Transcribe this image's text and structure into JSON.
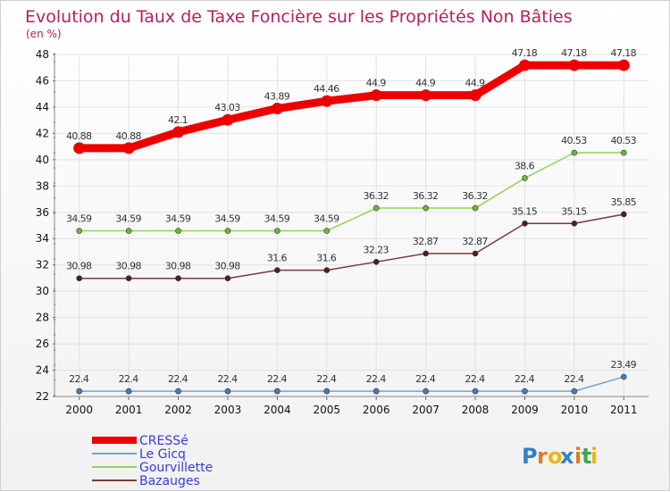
{
  "chart_data": {
    "type": "line",
    "title": "Evolution du Taux de Taxe Foncière sur les Propriétés Non Bâties",
    "subtitle": "(en %)",
    "xlabel": "",
    "ylabel": "(en %)",
    "x": [
      "2000",
      "2001",
      "2002",
      "2003",
      "2004",
      "2005",
      "2006",
      "2007",
      "2008",
      "2009",
      "2010",
      "2011"
    ],
    "ylim": [
      22,
      48
    ],
    "yticks": [
      22,
      24,
      26,
      28,
      30,
      32,
      34,
      36,
      38,
      40,
      42,
      44,
      46,
      48
    ],
    "grid": true,
    "legend": "bottom-left",
    "series": [
      {
        "name": "CRESSé",
        "color": "#ee0000",
        "labels": [
          "40.88",
          "40.88",
          "42.1",
          "43.03",
          "43.89",
          "44.46",
          "44.9",
          "44.9",
          "44.9",
          "47.18",
          "47.18",
          "47.18"
        ],
        "values": [
          40.88,
          40.88,
          42.1,
          43.03,
          43.89,
          44.46,
          44.9,
          44.9,
          44.9,
          47.18,
          47.18,
          47.18
        ]
      },
      {
        "name": "Le Gicq",
        "color": "#6fa3d8",
        "marker": "#3f7fc0",
        "labels": [
          "22.4",
          "22.4",
          "22.4",
          "22.4",
          "22.4",
          "22.4",
          "22.4",
          "22.4",
          "22.4",
          "22.4",
          "22.4",
          "23.49"
        ],
        "values": [
          22.4,
          22.4,
          22.4,
          22.4,
          22.4,
          22.4,
          22.4,
          22.4,
          22.4,
          22.4,
          22.4,
          23.49
        ]
      },
      {
        "name": "Gourvillette",
        "color": "#8fd45a",
        "marker": "#66bb33",
        "labels": [
          "34.59",
          "34.59",
          "34.59",
          "34.59",
          "34.59",
          "34.59",
          "36.32",
          "36.32",
          "36.32",
          "38.6",
          "40.53",
          "40.53"
        ],
        "values": [
          34.59,
          34.59,
          34.59,
          34.59,
          34.59,
          34.59,
          36.32,
          36.32,
          36.32,
          38.6,
          40.53,
          40.53
        ]
      },
      {
        "name": "Bazauges",
        "color": "#7a3a3a",
        "marker": "#5a1a1a",
        "labels": [
          "30.98",
          "30.98",
          "30.98",
          "30.98",
          "31.6",
          "31.6",
          "32.23",
          "32.87",
          "32.87",
          "35.15",
          "35.15",
          "35.85"
        ],
        "values": [
          30.98,
          30.98,
          30.98,
          30.98,
          31.6,
          31.6,
          32.23,
          32.87,
          32.87,
          35.15,
          35.15,
          35.85
        ]
      }
    ]
  },
  "logo": {
    "text": "Proxiti",
    "letters": [
      "P",
      "r",
      "o",
      "x",
      "i",
      "t",
      "i"
    ],
    "colors": [
      "#2f82c8",
      "#e07a1c",
      "#e8b81a",
      "#2f82c8",
      "#e07a1c",
      "#3aa84a",
      "#e8b81a"
    ]
  }
}
